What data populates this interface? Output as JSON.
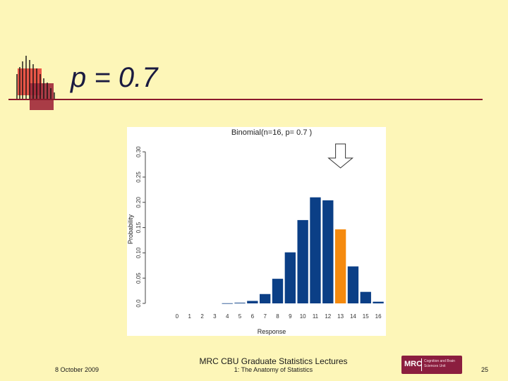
{
  "slide": {
    "title": "p = 0.7"
  },
  "footer": {
    "date": "8 October 2009",
    "series": "MRC CBU Graduate Statistics Lectures",
    "lecture": "1: The Anatomy of Statistics",
    "page": "25",
    "logo_word": "MRC",
    "logo_sub": "Cognition and Brain Sciences Unit"
  },
  "colors": {
    "bar": "#0b3f86",
    "highlight": "#f58a0e",
    "arrow_fill": "#ffffff",
    "arrow_stroke": "#333333"
  },
  "chart_data": {
    "type": "bar",
    "title": "Binomial(n=16, p= 0.7 )",
    "xlabel": "Response",
    "ylabel": "Probability",
    "categories": [
      "0",
      "1",
      "2",
      "3",
      "4",
      "5",
      "6",
      "7",
      "8",
      "9",
      "10",
      "11",
      "12",
      "13",
      "14",
      "15",
      "16"
    ],
    "values": [
      0.0,
      0.0,
      0.0,
      0.0,
      0.0003,
      0.0013,
      0.0049,
      0.0185,
      0.0487,
      0.101,
      0.1649,
      0.2099,
      0.204,
      0.1465,
      0.0732,
      0.0228,
      0.0033
    ],
    "highlight_category": "13",
    "yticks": [
      0.0,
      0.05,
      0.1,
      0.15,
      0.2,
      0.25,
      0.3
    ],
    "ytick_labels": [
      "0.0",
      "0.05",
      "0.10",
      "0.15",
      "0.20",
      "0.25",
      "0.30"
    ],
    "ylim": [
      0,
      0.31
    ],
    "grid": false,
    "annotation": "down arrow above highlighted bar"
  }
}
